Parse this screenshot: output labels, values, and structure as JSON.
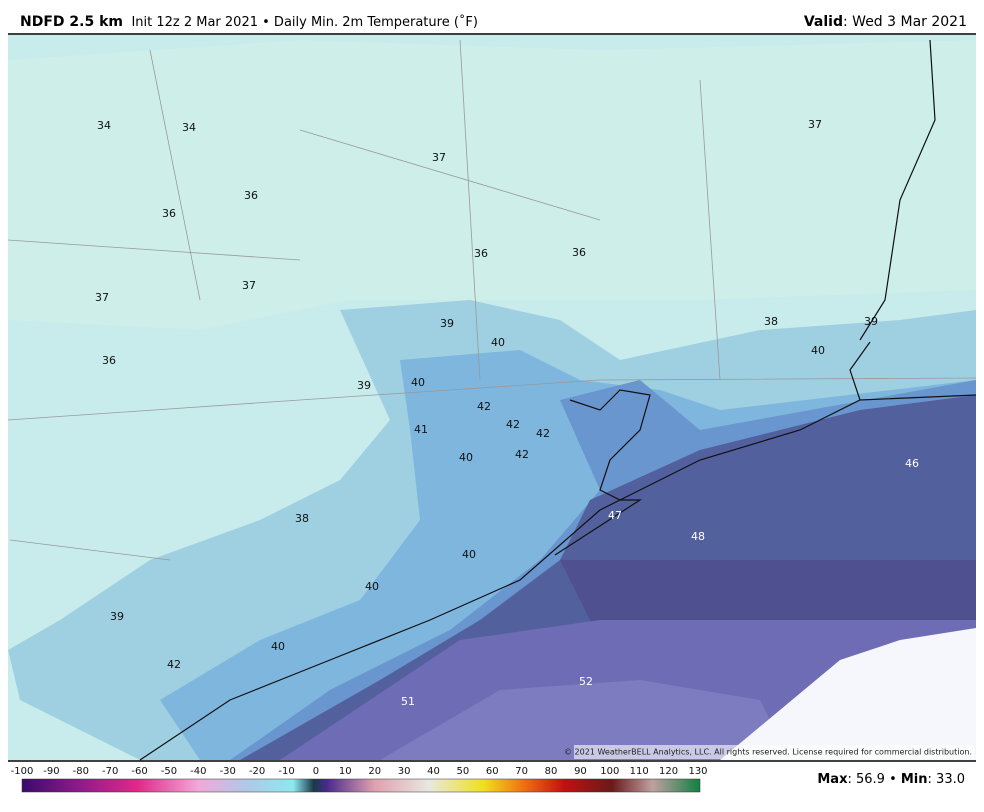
{
  "header": {
    "product": "NDFD 2.5 km",
    "description": "Init 12z 2 Mar 2021 • Daily Min. 2m Temperature (˚F)",
    "valid_label": "Valid",
    "valid_value": ": Wed 3 Mar 2021"
  },
  "map": {
    "labels": [
      34,
      34,
      37,
      37,
      36,
      36,
      36,
      36,
      37,
      37,
      36,
      39,
      40,
      38,
      39,
      40,
      39,
      40,
      42,
      42,
      42,
      41,
      40,
      42,
      46,
      47,
      48,
      38,
      40,
      40,
      39,
      40,
      42,
      52,
      51
    ],
    "copyright": "© 2021 WeatherBELL Analytics, LLC. All rights reserved. License required for commercial distribution."
  },
  "colorbar": {
    "ticks": [
      -100,
      -90,
      -80,
      -70,
      -60,
      -50,
      -40,
      -30,
      -20,
      -10,
      0,
      10,
      20,
      30,
      40,
      50,
      60,
      70,
      80,
      90,
      100,
      110,
      120,
      130
    ]
  },
  "footer": {
    "max_label": "Max",
    "max_value": ": 56.9 • ",
    "min_label": "Min",
    "min_value": ": 33.0"
  }
}
